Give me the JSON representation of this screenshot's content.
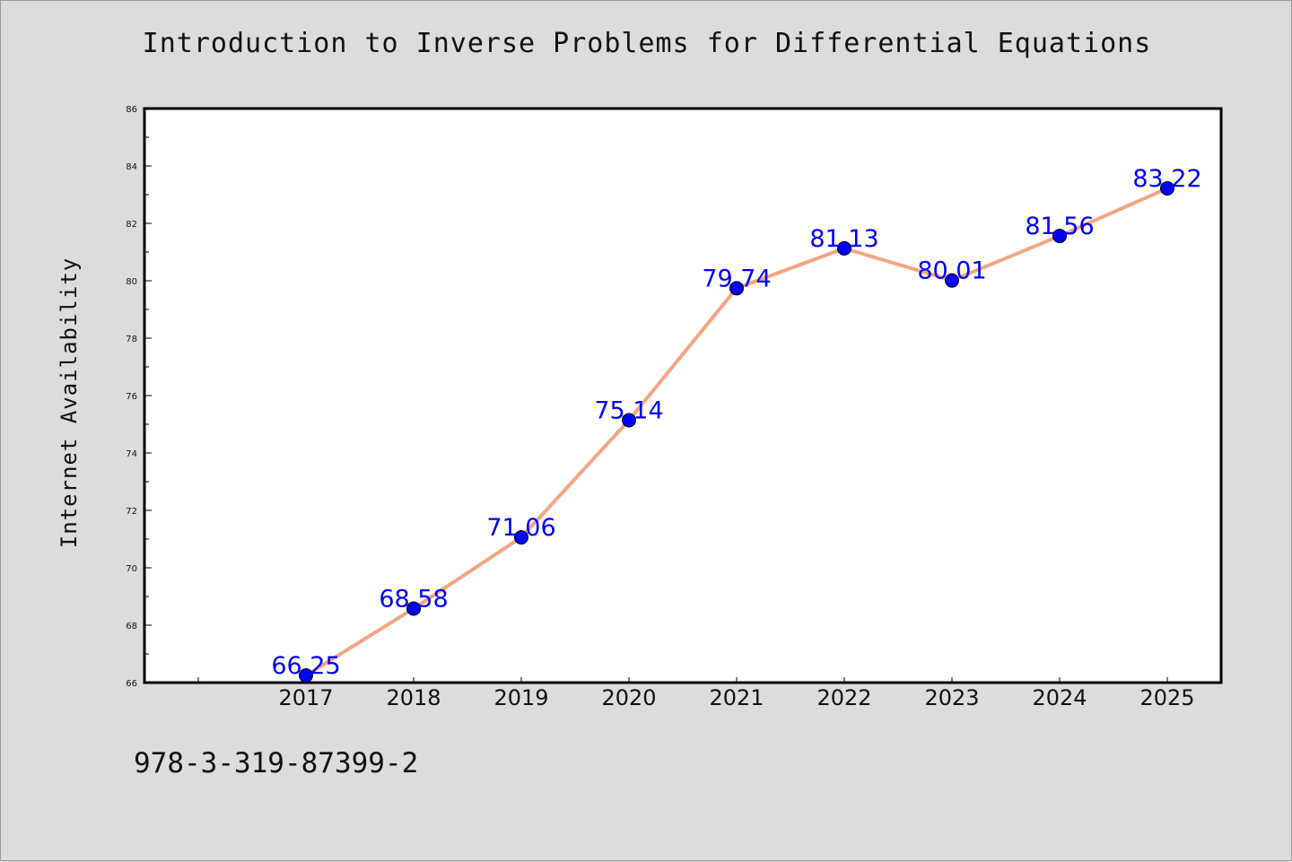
{
  "chart_data": {
    "type": "line",
    "title": "Introduction to Inverse Problems for Differential Equations",
    "xlabel": "",
    "ylabel": "Internet Availability",
    "categories": [
      "2017",
      "2018",
      "2019",
      "2020",
      "2021",
      "2022",
      "2023",
      "2024",
      "2025"
    ],
    "series": [
      {
        "values": [
          66.25,
          68.58,
          71.06,
          75.14,
          79.74,
          81.13,
          80.01,
          81.56,
          83.22
        ],
        "data_labels": [
          "66.25",
          "68.58",
          "71.06",
          "75.14",
          "79.74",
          "81.13",
          "80.01",
          "81.56",
          "83.22"
        ],
        "line_color": "#f4a582",
        "marker_color": "#0000ff"
      }
    ],
    "ylim": [
      66,
      86
    ],
    "y_ticks": [
      "66",
      "68",
      "70",
      "72",
      "74",
      "76",
      "78",
      "80",
      "82",
      "84",
      "86"
    ],
    "grid": false,
    "legend": "none"
  },
  "footer": {
    "isbn": "978-3-319-87399-2"
  },
  "colors": {
    "background": "#dcdcdc",
    "plot_area": "#ffffff",
    "line": "#f4a582",
    "marker": "#0000ff",
    "data_label": "#0000ff"
  }
}
